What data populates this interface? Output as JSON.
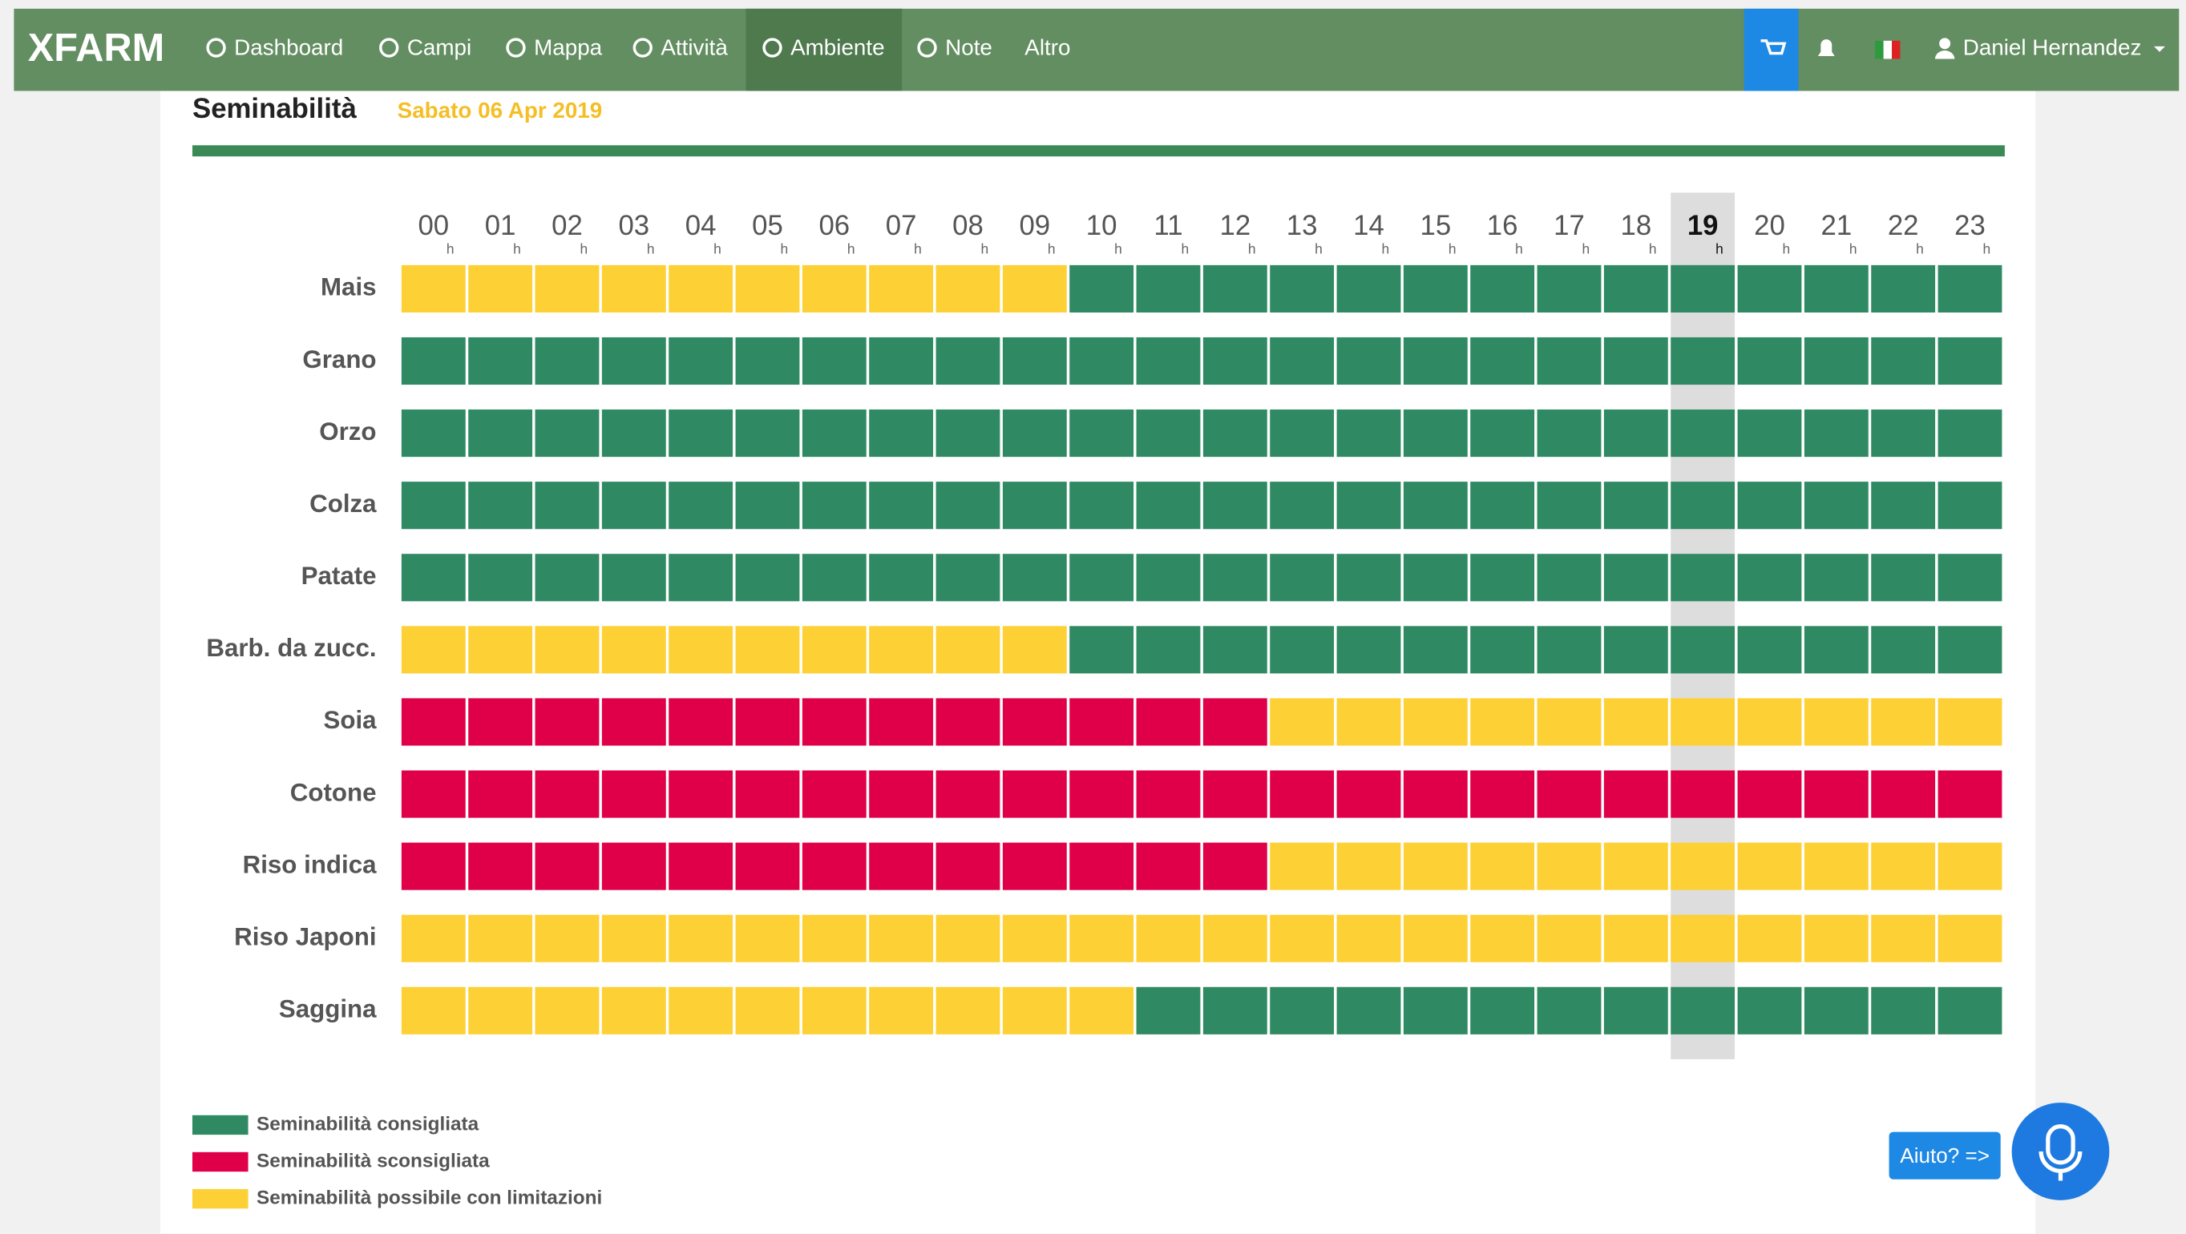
{
  "navbar": {
    "logo": "XFARM",
    "items": [
      "Dashboard",
      "Campi",
      "Mappa",
      "Attività",
      "Ambiente",
      "Note",
      "Altro"
    ],
    "active": 4,
    "user": "Daniel Hernandez"
  },
  "header": {
    "title": "Seminabilità",
    "date": "Sabato 06 Apr 2019"
  },
  "grid": {
    "hours": [
      "00",
      "01",
      "02",
      "03",
      "04",
      "05",
      "06",
      "07",
      "08",
      "09",
      "10",
      "11",
      "12",
      "13",
      "14",
      "15",
      "16",
      "17",
      "18",
      "19",
      "20",
      "21",
      "22",
      "23"
    ],
    "hour_unit": "h",
    "highlight": 19,
    "rows": [
      {
        "name": "Mais",
        "cells": [
          2,
          2,
          2,
          2,
          2,
          2,
          2,
          2,
          2,
          2,
          0,
          0,
          0,
          0,
          0,
          0,
          0,
          0,
          0,
          0,
          0,
          0,
          0,
          0
        ]
      },
      {
        "name": "Grano",
        "cells": [
          0,
          0,
          0,
          0,
          0,
          0,
          0,
          0,
          0,
          0,
          0,
          0,
          0,
          0,
          0,
          0,
          0,
          0,
          0,
          0,
          0,
          0,
          0,
          0
        ]
      },
      {
        "name": "Orzo",
        "cells": [
          0,
          0,
          0,
          0,
          0,
          0,
          0,
          0,
          0,
          0,
          0,
          0,
          0,
          0,
          0,
          0,
          0,
          0,
          0,
          0,
          0,
          0,
          0,
          0
        ]
      },
      {
        "name": "Colza",
        "cells": [
          0,
          0,
          0,
          0,
          0,
          0,
          0,
          0,
          0,
          0,
          0,
          0,
          0,
          0,
          0,
          0,
          0,
          0,
          0,
          0,
          0,
          0,
          0,
          0
        ]
      },
      {
        "name": "Patate",
        "cells": [
          0,
          0,
          0,
          0,
          0,
          0,
          0,
          0,
          0,
          0,
          0,
          0,
          0,
          0,
          0,
          0,
          0,
          0,
          0,
          0,
          0,
          0,
          0,
          0
        ]
      },
      {
        "name": "Barb. da zucc.",
        "cells": [
          2,
          2,
          2,
          2,
          2,
          2,
          2,
          2,
          2,
          2,
          0,
          0,
          0,
          0,
          0,
          0,
          0,
          0,
          0,
          0,
          0,
          0,
          0,
          0
        ]
      },
      {
        "name": "Soia",
        "cells": [
          1,
          1,
          1,
          1,
          1,
          1,
          1,
          1,
          1,
          1,
          1,
          1,
          1,
          2,
          2,
          2,
          2,
          2,
          2,
          2,
          2,
          2,
          2,
          2
        ]
      },
      {
        "name": "Cotone",
        "cells": [
          1,
          1,
          1,
          1,
          1,
          1,
          1,
          1,
          1,
          1,
          1,
          1,
          1,
          1,
          1,
          1,
          1,
          1,
          1,
          1,
          1,
          1,
          1,
          1
        ]
      },
      {
        "name": "Riso indica",
        "cells": [
          1,
          1,
          1,
          1,
          1,
          1,
          1,
          1,
          1,
          1,
          1,
          1,
          1,
          2,
          2,
          2,
          2,
          2,
          2,
          2,
          2,
          2,
          2,
          2
        ]
      },
      {
        "name": "Riso Japoni",
        "cells": [
          2,
          2,
          2,
          2,
          2,
          2,
          2,
          2,
          2,
          2,
          2,
          2,
          2,
          2,
          2,
          2,
          2,
          2,
          2,
          2,
          2,
          2,
          2,
          2
        ]
      },
      {
        "name": "Saggina",
        "cells": [
          2,
          2,
          2,
          2,
          2,
          2,
          2,
          2,
          2,
          2,
          2,
          0,
          0,
          0,
          0,
          0,
          0,
          0,
          0,
          0,
          0,
          0,
          0,
          0
        ]
      }
    ]
  },
  "legend": [
    {
      "label": "Seminabilità consigliata",
      "color": "#2f8a63"
    },
    {
      "label": "Seminabilità sconsigliata",
      "color": "#e00049"
    },
    {
      "label": "Seminabilità possibile con limitazioni",
      "color": "#fdd135"
    }
  ],
  "help_button": "Aiuto? =>"
}
